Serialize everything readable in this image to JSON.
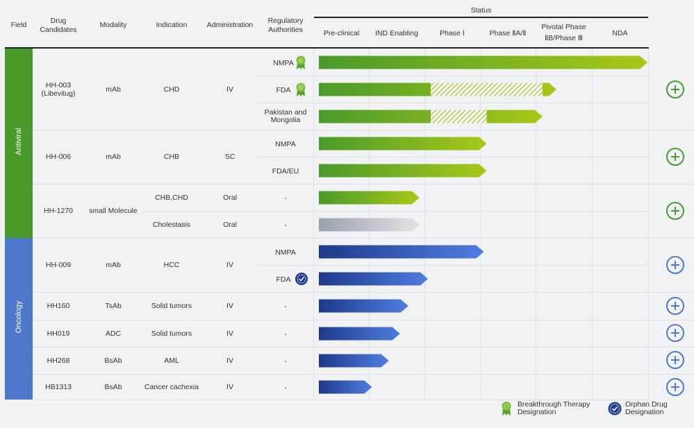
{
  "header": {
    "field": "Field",
    "drug_candidates": "Drug Candidates",
    "modality": "Modality",
    "indication": "Indication",
    "administration": "Administration",
    "regulatory": "Regulatory Authorities",
    "status": "Status",
    "stages": [
      "Pre-clinical",
      "IND Enabling",
      "Phase Ⅰ",
      "Phase ⅡA/Ⅱ",
      "Pivotal Phase ⅡB/Phase Ⅲ",
      "NDA"
    ]
  },
  "fields": [
    {
      "label": "Antiviral",
      "color": "#4a9a2b"
    },
    {
      "label": "Oncology",
      "color": "#4d78cc"
    }
  ],
  "drugs": [
    {
      "name": "HH-003 (Libevitug)",
      "modality": "mAb",
      "indication": "CHD",
      "administration": "IV"
    },
    {
      "name": "HH-006",
      "modality": "mAb",
      "indication": "CHB",
      "administration": "SC"
    },
    {
      "name": "HH-1270",
      "modality": "small Molecule",
      "indications": [
        {
          "indication": "CHB,CHD",
          "administration": "Oral"
        },
        {
          "indication": "Cholestasis",
          "administration": "Oral"
        }
      ]
    },
    {
      "name": "HH-009",
      "modality": "mAb",
      "indication": "HCC",
      "administration": "IV"
    },
    {
      "name": "HH160",
      "modality": "TsAb",
      "indication": "Solid tumors",
      "administration": "IV"
    },
    {
      "name": "HH019",
      "modality": "ADC",
      "indication": "Solid tumors",
      "administration": "IV"
    },
    {
      "name": "HH268",
      "modality": "BsAb",
      "indication": "AML",
      "administration": "IV"
    },
    {
      "name": "HB1313",
      "modality": "BsAb",
      "indication": "Cancer cachexia",
      "administration": "IV"
    }
  ],
  "chart_data": {
    "type": "bar",
    "categories": [
      "Pre-clinical",
      "IND Enabling",
      "Phase Ⅰ",
      "Phase ⅡA/Ⅱ",
      "Pivotal Phase ⅡB/Phase Ⅲ",
      "NDA"
    ],
    "bars": [
      {
        "drug": "HH-003 (Libevitug)",
        "regulatory": "NMPA",
        "badge": "breakthrough",
        "progress": 6.0,
        "hatch": null,
        "color": "green"
      },
      {
        "drug": "HH-003 (Libevitug)",
        "regulatory": "FDA",
        "badge": "breakthrough",
        "progress": 4.25,
        "hatch": [
          2.0,
          4.0
        ],
        "color": "green"
      },
      {
        "drug": "HH-003 (Libevitug)",
        "regulatory": "Pakistan and Mongolia",
        "badge": null,
        "progress": 4.0,
        "hatch": [
          2.0,
          3.0
        ],
        "color": "green"
      },
      {
        "drug": "HH-006",
        "regulatory": "NMPA",
        "badge": null,
        "progress": 3.0,
        "hatch": null,
        "color": "green"
      },
      {
        "drug": "HH-006",
        "regulatory": "FDA/EU",
        "badge": null,
        "progress": 3.0,
        "hatch": null,
        "color": "green"
      },
      {
        "drug": "HH-1270",
        "regulatory": "-",
        "badge": null,
        "progress": 1.8,
        "hatch": null,
        "color": "green"
      },
      {
        "drug": "HH-1270",
        "regulatory": "-",
        "badge": null,
        "progress": 1.8,
        "hatch": null,
        "color": "gray"
      },
      {
        "drug": "HH-009",
        "regulatory": "NMPA",
        "badge": null,
        "progress": 2.95,
        "hatch": null,
        "color": "blue"
      },
      {
        "drug": "HH-009",
        "regulatory": "FDA",
        "badge": "orphan",
        "progress": 1.95,
        "hatch": null,
        "color": "blue"
      },
      {
        "drug": "HH160",
        "regulatory": "-",
        "badge": null,
        "progress": 1.6,
        "hatch": null,
        "color": "blue"
      },
      {
        "drug": "HH019",
        "regulatory": "-",
        "badge": null,
        "progress": 1.45,
        "hatch": null,
        "color": "blue"
      },
      {
        "drug": "HH268",
        "regulatory": "-",
        "badge": null,
        "progress": 1.25,
        "hatch": null,
        "color": "blue"
      },
      {
        "drug": "HB1313",
        "regulatory": "-",
        "badge": null,
        "progress": 0.95,
        "hatch": null,
        "color": "blue"
      }
    ],
    "colors": {
      "green_start": "#4a9a2b",
      "green_end": "#a8c818",
      "blue_start": "#1e3a8a",
      "blue_end": "#4f7de0",
      "gray_start": "#9aa2ad",
      "gray_end": "#e2e4e8"
    }
  },
  "legend": {
    "breakthrough": "Breakthrough Therapy Designation",
    "orphan": "Orphan Drug Designation"
  }
}
